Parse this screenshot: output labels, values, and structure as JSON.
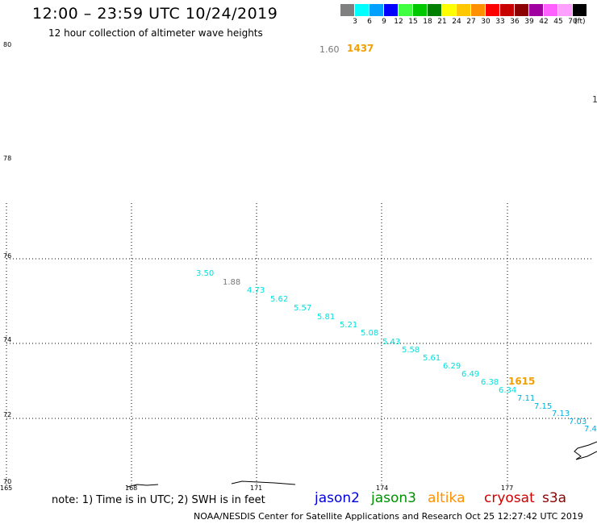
{
  "header": {
    "title": "12:00 – 23:59 UTC 10/24/2019",
    "subtitle": "12 hour collection of altimeter wave heights"
  },
  "color_scale": {
    "colors": [
      "#808080",
      "#00ffff",
      "#00a0ff",
      "#0000ff",
      "#40ff40",
      "#00c800",
      "#008000",
      "#ffff00",
      "#ffc800",
      "#ff9000",
      "#ff0000",
      "#c80000",
      "#8b0000",
      "#a000a0",
      "#ff60ff",
      "#ffa0ff",
      "#000000"
    ],
    "labels": [
      "3",
      "6",
      "9",
      "12",
      "15",
      "18",
      "21",
      "24",
      "27",
      "30",
      "33",
      "36",
      "39",
      "42",
      "45",
      "70"
    ],
    "unit": "(ft)"
  },
  "map": {
    "lat_labels": [
      "80",
      "78",
      "76",
      "74",
      "72",
      "70"
    ],
    "lon_labels": [
      "165",
      "168",
      "171",
      "174",
      "177"
    ],
    "track_points": [
      {
        "value": "3.50",
        "color": "#00e0e0"
      },
      {
        "value": "1.88",
        "color": "#777777"
      },
      {
        "value": "4.73",
        "color": "#00e0e0"
      },
      {
        "value": "5.62",
        "color": "#00e0e0"
      },
      {
        "value": "5.57",
        "color": "#00e0e0"
      },
      {
        "value": "5.81",
        "color": "#00e0e0"
      },
      {
        "value": "5.21",
        "color": "#00e0e0"
      },
      {
        "value": "5.08",
        "color": "#00e0e0"
      },
      {
        "value": "5.43",
        "color": "#00e0e0"
      },
      {
        "value": "5.58",
        "color": "#00e0e0"
      },
      {
        "value": "5.61",
        "color": "#00e0e0"
      },
      {
        "value": "6.29",
        "color": "#00e0e0"
      },
      {
        "value": "6.49",
        "color": "#00e0e0"
      },
      {
        "value": "6.38",
        "color": "#00e0e0"
      },
      {
        "value": "6.34",
        "color": "#00e0e0"
      },
      {
        "value": "7.11",
        "color": "#00b0e0"
      },
      {
        "value": "7.15",
        "color": "#00b0e0"
      },
      {
        "value": "7.13",
        "color": "#00b0e0"
      },
      {
        "value": "7.03",
        "color": "#00b0e0"
      },
      {
        "value": "7.4",
        "color": "#00b0e0"
      }
    ],
    "top_gray": "1.60",
    "top_time": "1437",
    "track_time": "1615",
    "edge_mark": "1"
  },
  "footer": {
    "note": "note:  1) Time is in UTC;  2) SWH is in feet",
    "satellites": [
      {
        "name": "jason2",
        "color": "#0000dd"
      },
      {
        "name": "jason3",
        "color": "#009000"
      },
      {
        "name": "altika",
        "color": "#ff9000"
      },
      {
        "name": "cryosat",
        "color": "#d00000"
      },
      {
        "name": "s3a",
        "color": "#8b0000"
      }
    ],
    "credit": "NOAA/NESDIS Center for Satellite Applications and Research     Oct 25 12:27:42 UTC 2019"
  }
}
